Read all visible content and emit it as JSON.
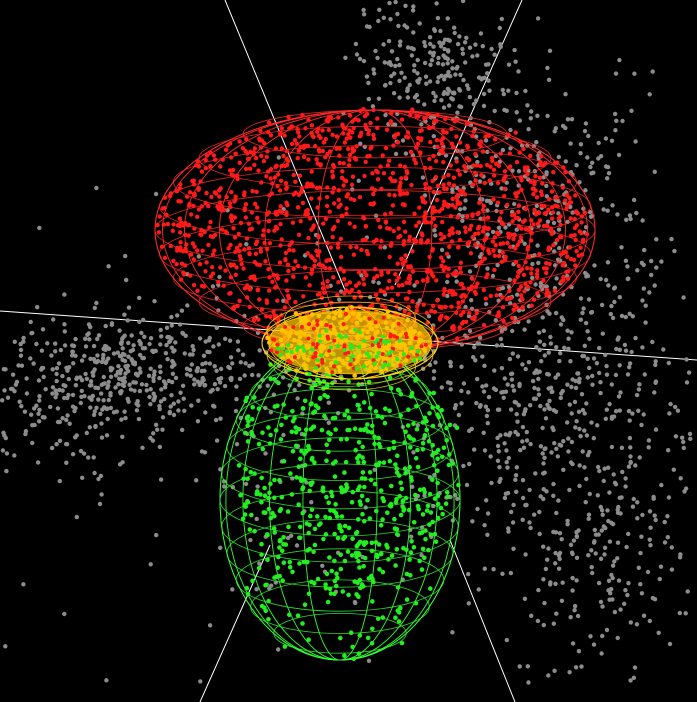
{
  "scene": {
    "background": "#000000",
    "axis_color": "#ffffff",
    "colors": {
      "background_cloud": "#8c8c8c",
      "cluster_red": "#ff1a1a",
      "cluster_green": "#22ee22",
      "cluster_yellow": "#ffc400",
      "wire_red": "#ff2a2a",
      "wire_green": "#33ff33",
      "wire_yellow": "#ffd21a"
    },
    "clusters": [
      {
        "id": "red",
        "label": "",
        "shape": "ellipsoid-wireframe"
      },
      {
        "id": "green",
        "label": "",
        "shape": "ellipsoid-wireframe"
      },
      {
        "id": "yellow",
        "label": "",
        "shape": "ellipsoid-wireframe"
      }
    ]
  }
}
